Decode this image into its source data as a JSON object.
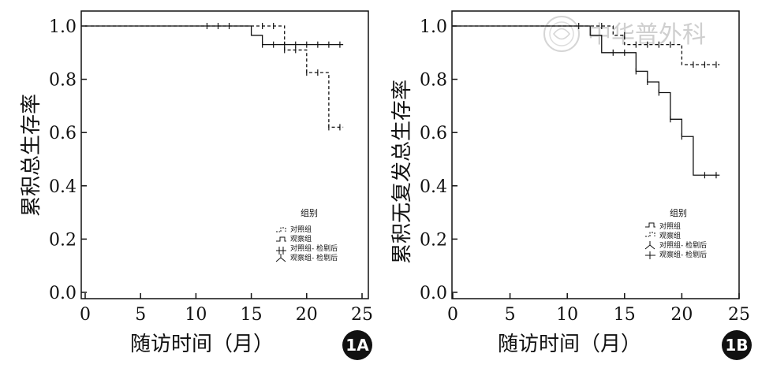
{
  "watermark": {
    "text": "中华普外科"
  },
  "chart_data": [
    {
      "type": "line",
      "step": true,
      "panel_label": "1A",
      "title": "",
      "xlabel": "随访时间（月）",
      "ylabel": "累积总生存率",
      "xlim": [
        0,
        25
      ],
      "ylim": [
        0.0,
        1.0
      ],
      "xticks": [
        "0",
        "5",
        "10",
        "15",
        "20",
        "25"
      ],
      "yticks": [
        "0.0",
        "0.2",
        "0.4",
        "0.6",
        "0.8",
        "1.0"
      ],
      "legend": {
        "title": "组别",
        "position": "center-right",
        "entries": [
          "对照组",
          "观察组",
          "对照组- 检剔后",
          "观察组- 检剔后"
        ]
      },
      "series": [
        {
          "name": "对照组",
          "style": "dashed",
          "x": [
            0,
            18,
            20,
            22,
            23.3
          ],
          "y": [
            1.0,
            0.91,
            0.825,
            0.62,
            0.62
          ],
          "censored": [
            [
              11,
              1.0
            ],
            [
              12,
              1.0
            ],
            [
              13,
              1.0
            ],
            [
              16,
              1.0
            ],
            [
              17,
              1.0
            ],
            [
              18,
              0.91
            ],
            [
              19,
              0.91
            ],
            [
              20,
              0.825
            ],
            [
              21,
              0.825
            ],
            [
              22,
              0.62
            ],
            [
              23,
              0.62
            ]
          ]
        },
        {
          "name": "观察组",
          "style": "solid",
          "x": [
            0,
            15,
            16,
            23.3
          ],
          "y": [
            1.0,
            0.965,
            0.93,
            0.93
          ],
          "censored": [
            [
              16,
              0.93
            ],
            [
              17,
              0.93
            ],
            [
              18,
              0.93
            ],
            [
              19,
              0.93
            ],
            [
              20,
              0.93
            ],
            [
              21,
              0.93
            ],
            [
              22,
              0.93
            ],
            [
              23,
              0.93
            ]
          ]
        }
      ]
    },
    {
      "type": "line",
      "step": true,
      "panel_label": "1B",
      "title": "",
      "xlabel": "随访时间（月）",
      "ylabel": "累积无复发总生存率",
      "xlim": [
        0,
        25
      ],
      "ylim": [
        0.0,
        1.0
      ],
      "xticks": [
        "0",
        "5",
        "10",
        "15",
        "20",
        "25"
      ],
      "yticks": [
        "0.0",
        "0.2",
        "0.4",
        "0.6",
        "0.8",
        "1.0"
      ],
      "legend": {
        "title": "组别",
        "position": "center-right",
        "entries": [
          "对照组",
          "观察组",
          "对照组- 检剔后",
          "观察组- 检剔后"
        ]
      },
      "series": [
        {
          "name": "对照组",
          "style": "solid",
          "x": [
            0,
            12,
            13,
            16,
            17,
            18,
            19,
            20,
            21,
            23.3
          ],
          "y": [
            1.0,
            0.965,
            0.9,
            0.83,
            0.79,
            0.75,
            0.65,
            0.585,
            0.44,
            0.44
          ],
          "censored": [
            [
              11,
              1.0
            ],
            [
              14,
              0.9
            ],
            [
              15,
              0.9
            ],
            [
              16,
              0.83
            ],
            [
              17,
              0.79
            ],
            [
              18,
              0.75
            ],
            [
              19,
              0.65
            ],
            [
              20,
              0.585
            ],
            [
              22,
              0.44
            ],
            [
              23,
              0.44
            ]
          ]
        },
        {
          "name": "观察组",
          "style": "dashed",
          "x": [
            0,
            14,
            15,
            20,
            23.3
          ],
          "y": [
            1.0,
            0.965,
            0.93,
            0.855,
            0.855
          ],
          "censored": [
            [
              13,
              1.0
            ],
            [
              15,
              0.965
            ],
            [
              16,
              0.93
            ],
            [
              17,
              0.93
            ],
            [
              18,
              0.93
            ],
            [
              19,
              0.93
            ],
            [
              21,
              0.855
            ],
            [
              22,
              0.855
            ],
            [
              23,
              0.855
            ]
          ]
        }
      ]
    }
  ]
}
